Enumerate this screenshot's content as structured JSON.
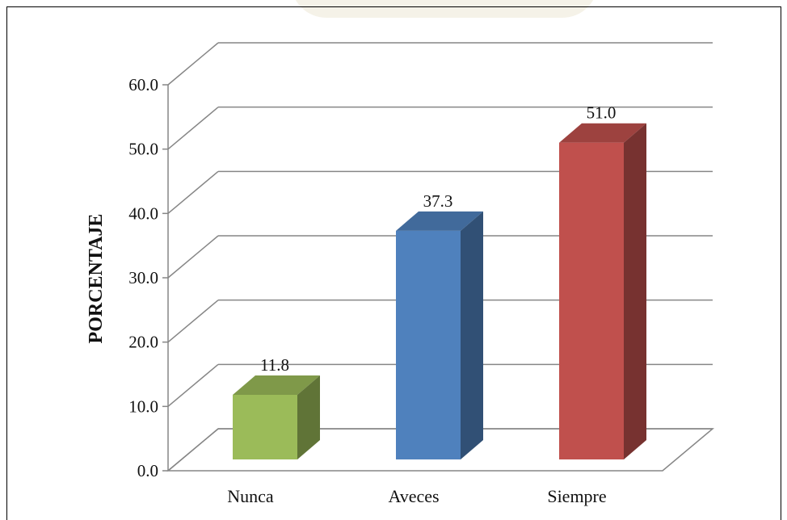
{
  "chart_data": {
    "type": "bar",
    "categories": [
      "Nunca",
      "Aveces",
      "Siempre"
    ],
    "values": [
      11.8,
      37.3,
      51.0
    ],
    "value_labels": [
      "11.8",
      "37.3",
      "51.0"
    ],
    "ylabel": "PORCENTAJE",
    "ylim": [
      0,
      60
    ],
    "yticks": [
      "0.0",
      "10.0",
      "20.0",
      "30.0",
      "40.0",
      "50.0",
      "60.0"
    ],
    "grid": true,
    "style": "3d-column",
    "colors": [
      "#9BBB59",
      "#4F81BD",
      "#C0504D"
    ]
  }
}
